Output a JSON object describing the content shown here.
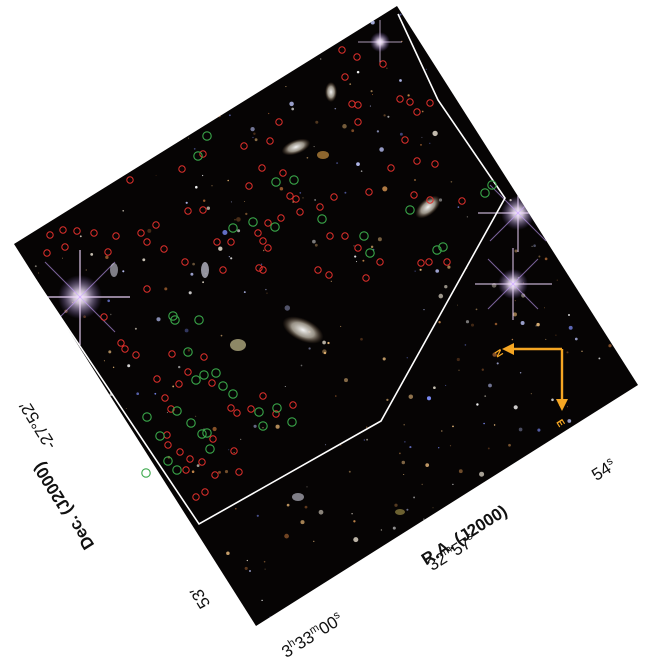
{
  "axes": {
    "ra_title": "R.A. (J2000)",
    "dec_title": "Dec. (J2000)",
    "ra_ticks": [
      {
        "h": "3",
        "m": "33",
        "s": "00",
        "label_h": "h",
        "label_m": "m",
        "label_s": "s"
      },
      {
        "m": "32",
        "s": "57",
        "label_m": "m",
        "label_s": "s"
      },
      {
        "s": "54",
        "label_s": "s"
      }
    ],
    "dec_ticks": [
      {
        "text": "-27°52′"
      },
      {
        "text": "53′"
      }
    ]
  },
  "compass": {
    "north": "N",
    "east": "E",
    "color": "#f5a623"
  },
  "colors": {
    "sky": "#060404",
    "footprint": "#ffffff",
    "marker_red": "#e0302c",
    "marker_green": "#3aa84a"
  }
}
